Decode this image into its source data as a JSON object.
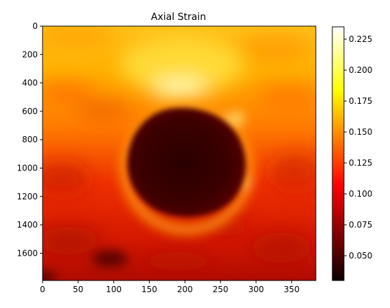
{
  "chart_data": [
    {
      "type": "heatmap",
      "title": "Axial Strain",
      "xlabel": "",
      "ylabel": "",
      "xlim": [
        0,
        384
      ],
      "ylim": [
        1792,
        0
      ],
      "x_ticks": [
        0,
        50,
        100,
        150,
        200,
        250,
        300,
        350
      ],
      "y_ticks": [
        0,
        200,
        400,
        600,
        800,
        1000,
        1200,
        1400,
        1600
      ],
      "colormap": "hot",
      "colorbar": {
        "range": [
          0.03,
          0.235
        ],
        "ticks": [
          0.05,
          0.075,
          0.1,
          0.125,
          0.15,
          0.175,
          0.2,
          0.225
        ],
        "tick_labels": [
          "0.050",
          "0.075",
          "0.100",
          "0.125",
          "0.150",
          "0.175",
          "0.200",
          "0.225"
        ]
      },
      "regions": [
        {
          "name": "background strain field",
          "value_range": [
            0.09,
            0.16
          ],
          "trend": "higher near top (yellow), lower toward bottom (red)"
        },
        {
          "name": "bright band above inclusion",
          "center": [
            205,
            480
          ],
          "value": 0.22
        },
        {
          "name": "stiff inclusion",
          "center": [
            205,
            950
          ],
          "radius_x": 85,
          "radius_y": 380,
          "value": 0.045
        },
        {
          "name": "bright rim around inclusion",
          "value": 0.16
        },
        {
          "name": "dark patch lower left",
          "center": [
            100,
            1640
          ],
          "value": 0.06
        }
      ]
    }
  ]
}
